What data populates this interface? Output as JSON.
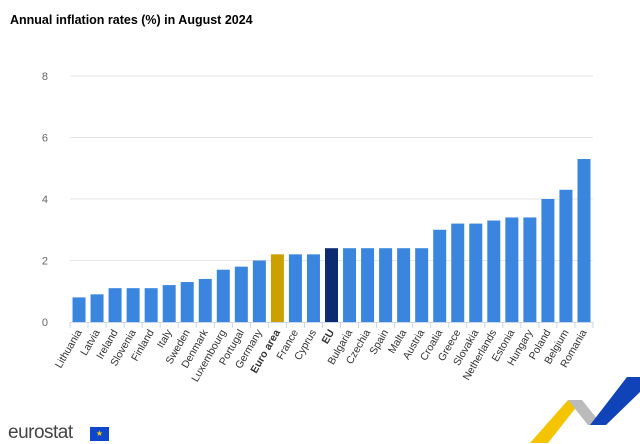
{
  "chart_data": {
    "type": "bar",
    "title": "Annual inflation rates (%) in August 2024",
    "categories": [
      "Lithuania",
      "Latvia",
      "Ireland",
      "Slovenia",
      "Finland",
      "Italy",
      "Sweden",
      "Denmark",
      "Luxembourg",
      "Portugal",
      "Germany",
      "Euro area",
      "France",
      "Cyprus",
      "EU",
      "Bulgaria",
      "Czechia",
      "Spain",
      "Malta",
      "Austria",
      "Croatia",
      "Greece",
      "Slovakia",
      "Netherlands",
      "Estonia",
      "Hungary",
      "Poland",
      "Belgium",
      "Romania"
    ],
    "values": [
      0.8,
      0.9,
      1.1,
      1.1,
      1.1,
      1.2,
      1.3,
      1.4,
      1.7,
      1.8,
      2.0,
      2.2,
      2.2,
      2.2,
      2.4,
      2.4,
      2.4,
      2.4,
      2.4,
      2.4,
      3.0,
      3.2,
      3.2,
      3.3,
      3.4,
      3.4,
      4.0,
      4.3,
      5.3
    ],
    "highlight": {
      "Euro area": "#c9a100",
      "EU": "#0e2a72"
    },
    "bold_categories": [
      "Euro area",
      "EU"
    ],
    "bar_color": "#3a86de",
    "ylim": [
      0,
      8
    ],
    "yticks": [
      0,
      2,
      4,
      6,
      8
    ],
    "grid": true,
    "xlabel": "",
    "ylabel": ""
  },
  "branding": {
    "logo": "eurostat"
  }
}
